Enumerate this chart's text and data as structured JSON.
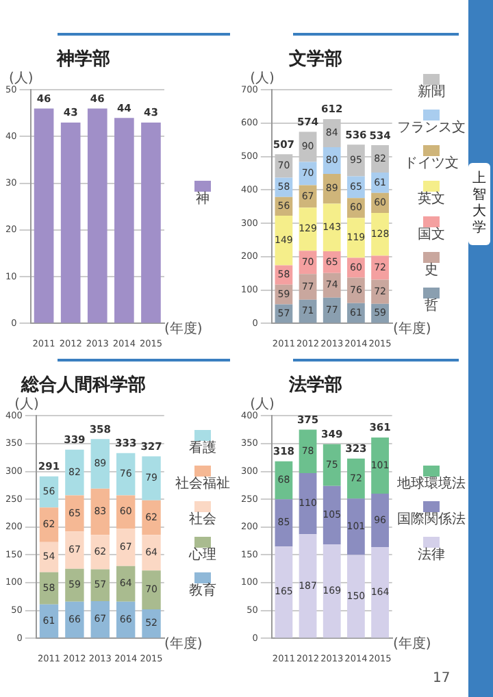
{
  "chart_data": [
    {
      "type": "bar",
      "title": "神学部",
      "ylabel": "(人)",
      "xlabel": "(年度)",
      "categories": [
        "2011",
        "2012",
        "2013",
        "2014",
        "2015"
      ],
      "series": [
        {
          "name": "神",
          "color": "#a08fc8",
          "values": [
            46,
            43,
            46,
            44,
            43
          ]
        }
      ],
      "ylim": [
        0,
        50
      ],
      "yticks": [
        0,
        10,
        20,
        30,
        40,
        50
      ],
      "grid": "y",
      "legend": "right",
      "data_labels": true
    },
    {
      "type": "bar",
      "title": "文学部",
      "ylabel": "(人)",
      "xlabel": "(年度)",
      "categories": [
        "2011",
        "2012",
        "2013",
        "2014",
        "2015"
      ],
      "stacked": true,
      "series": [
        {
          "name": "哲",
          "color": "#8a9fb0",
          "values": [
            57,
            71,
            77,
            61,
            59
          ]
        },
        {
          "name": "史",
          "color": "#c9a79e",
          "values": [
            59,
            77,
            74,
            76,
            72
          ]
        },
        {
          "name": "国文",
          "color": "#f4a0a0",
          "values": [
            58,
            70,
            65,
            60,
            72
          ]
        },
        {
          "name": "英文",
          "color": "#f5ee8a",
          "values": [
            149,
            129,
            143,
            119,
            128
          ]
        },
        {
          "name": "ドイツ文",
          "color": "#cfb57a",
          "values": [
            56,
            67,
            89,
            60,
            60
          ]
        },
        {
          "name": "フランス文",
          "color": "#a9cdef",
          "values": [
            58,
            70,
            80,
            65,
            61
          ]
        },
        {
          "name": "新聞",
          "color": "#c4c4c4",
          "values": [
            70,
            90,
            84,
            95,
            82
          ]
        }
      ],
      "totals": [
        "507",
        "574",
        "612",
        "536",
        "534"
      ],
      "ylim": [
        0,
        700
      ],
      "yticks": [
        0,
        100,
        200,
        300,
        400,
        500,
        600,
        700
      ],
      "grid": "y",
      "legend": "right",
      "data_labels": true,
      "annotations": [
        "上智大学"
      ]
    },
    {
      "type": "bar",
      "title": "総合人間科学部",
      "ylabel": "(人)",
      "xlabel": "(年度)",
      "categories": [
        "2011",
        "2012",
        "2013",
        "2014",
        "2015"
      ],
      "stacked": true,
      "series": [
        {
          "name": "教育",
          "color": "#8fb8d8",
          "values": [
            61,
            66,
            67,
            66,
            52
          ]
        },
        {
          "name": "心理",
          "color": "#a9bb8f",
          "values": [
            58,
            59,
            57,
            64,
            70
          ]
        },
        {
          "name": "社会",
          "color": "#fbd8c4",
          "values": [
            54,
            67,
            62,
            67,
            64
          ]
        },
        {
          "name": "社会福祉",
          "color": "#f5b894",
          "values": [
            62,
            65,
            83,
            60,
            62
          ]
        },
        {
          "name": "看護",
          "color": "#a8dde5",
          "values": [
            56,
            82,
            89,
            76,
            79
          ]
        }
      ],
      "totals": [
        "291",
        "339",
        "358",
        "333",
        "327"
      ],
      "ylim": [
        0,
        400
      ],
      "yticks": [
        0,
        50,
        100,
        150,
        200,
        250,
        300,
        350,
        400
      ],
      "grid": "y",
      "legend": "right",
      "data_labels": true
    },
    {
      "type": "bar",
      "title": "法学部",
      "ylabel": "(人)",
      "xlabel": "(年度)",
      "categories": [
        "2011",
        "2012",
        "2013",
        "2014",
        "2015"
      ],
      "stacked": true,
      "series": [
        {
          "name": "法律",
          "color": "#d4d0ea",
          "values": [
            165,
            187,
            169,
            150,
            164
          ]
        },
        {
          "name": "国際関係法",
          "color": "#8b8dc0",
          "values": [
            85,
            110,
            105,
            101,
            96
          ]
        },
        {
          "name": "地球環境法",
          "color": "#6cc08e",
          "values": [
            68,
            78,
            75,
            72,
            101
          ]
        }
      ],
      "totals": [
        "318",
        "375",
        "349",
        "323",
        "361"
      ],
      "ylim": [
        0,
        400
      ],
      "yticks": [
        0,
        50,
        100,
        150,
        200,
        250,
        300,
        350,
        400
      ],
      "grid": "y",
      "legend": "right",
      "data_labels": true,
      "annotations": [
        "17"
      ]
    }
  ]
}
